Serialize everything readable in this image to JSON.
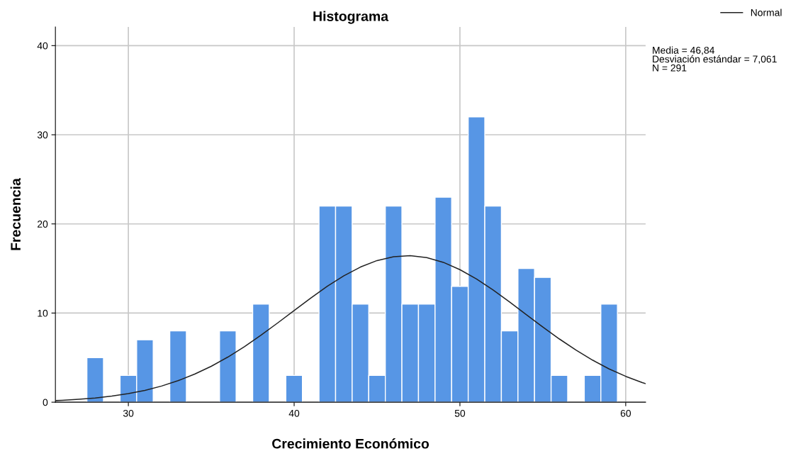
{
  "chart_data": {
    "type": "histogram",
    "title": "Histograma",
    "xlabel": "Crecimiento Económico",
    "ylabel": "Frecuencia",
    "bins": [
      27.5,
      28.5,
      29.5,
      30.5,
      31.5,
      32.5,
      33.5,
      34.5,
      35.5,
      36.5,
      37.5,
      38.5,
      39.5,
      40.5,
      41.5,
      42.5,
      43.5,
      44.5,
      45.5,
      46.5,
      47.5,
      48.5,
      49.5,
      50.5,
      51.5,
      52.5,
      53.5,
      54.5,
      55.5,
      56.5,
      57.5,
      58.5,
      59.5
    ],
    "values": [
      5,
      0,
      3,
      7,
      0,
      8,
      0,
      0,
      8,
      0,
      11,
      0,
      3,
      0,
      22,
      22,
      11,
      3,
      22,
      11,
      11,
      23,
      13,
      32,
      22,
      8,
      15,
      14,
      3,
      0,
      3,
      11
    ],
    "color": "#5796e5",
    "series": [
      {
        "type": "line",
        "name": "Normal",
        "color": "#222222",
        "x": [
          25.6,
          26,
          27,
          28,
          29,
          30,
          31,
          32,
          33,
          34,
          35,
          36,
          37,
          38,
          39,
          40,
          41,
          42,
          43,
          44,
          45,
          46,
          47,
          48,
          49,
          50,
          51,
          52,
          53,
          54,
          55,
          56,
          57,
          58,
          59,
          60,
          61,
          61.2
        ],
        "values": [
          0.18,
          0.21,
          0.32,
          0.47,
          0.68,
          0.96,
          1.33,
          1.81,
          2.41,
          3.15,
          4.03,
          5.06,
          6.23,
          7.51,
          8.88,
          10.28,
          11.68,
          13.0,
          14.18,
          15.16,
          15.89,
          16.32,
          16.44,
          16.22,
          15.69,
          14.87,
          13.82,
          12.59,
          11.24,
          9.83,
          8.43,
          7.09,
          5.84,
          4.72,
          3.73,
          2.9,
          2.2,
          2.08
        ]
      }
    ],
    "xlim": [
      25.6,
      61.2
    ],
    "xticks": [
      30,
      40,
      50,
      60
    ],
    "ylim": [
      0,
      42.1
    ],
    "yticks": [
      0,
      10,
      20,
      30,
      40
    ],
    "grid": true,
    "legend": "top right",
    "annotations": [
      "Media = 46,84\nDesviación estándar = 7,061\nN = 291"
    ]
  }
}
